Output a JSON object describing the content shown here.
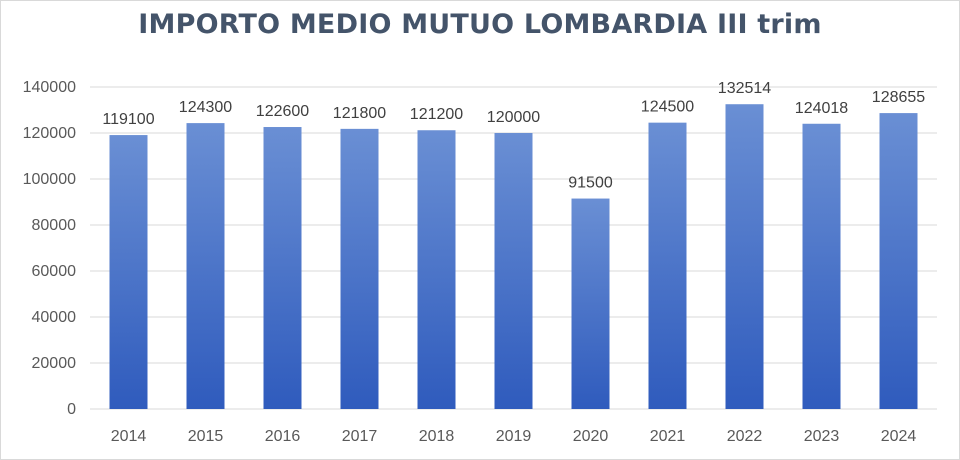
{
  "chart_data": {
    "type": "bar",
    "title": "IMPORTO MEDIO MUTUO LOMBARDIA III trim",
    "xlabel": "",
    "ylabel": "",
    "categories": [
      "2014",
      "2015",
      "2016",
      "2017",
      "2018",
      "2019",
      "2020",
      "2021",
      "2022",
      "2023",
      "2024"
    ],
    "values": [
      119100,
      124300,
      122600,
      121800,
      121200,
      120000,
      91500,
      124500,
      132514,
      124018,
      128655
    ],
    "data_labels": [
      "119100",
      "124300",
      "122600",
      "121800",
      "121200",
      "120000",
      "91500",
      "124500",
      "132514",
      "124018",
      "128655"
    ],
    "ylim": [
      0,
      140000
    ],
    "yticks": [
      0,
      20000,
      40000,
      60000,
      80000,
      100000,
      120000,
      140000
    ],
    "ytick_labels": [
      "0",
      "20000",
      "40000",
      "60000",
      "80000",
      "100000",
      "120000",
      "140000"
    ],
    "grid": true,
    "legend": "none",
    "colors": {
      "bar_top": "#6a8fd4",
      "bar_bottom": "#2f5bbd",
      "gridline": "#d9d9d9",
      "title": "#44546a"
    }
  }
}
